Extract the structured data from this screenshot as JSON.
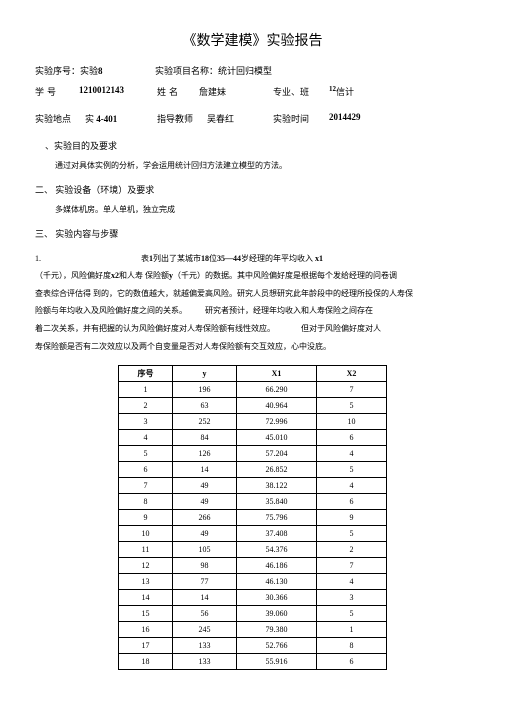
{
  "title": "《数学建模》实验报告",
  "row1": {
    "label_exp_no": "实验序号：实验",
    "exp_no_bold": "8",
    "label_proj_name": "实验项目名称：统计回归模型"
  },
  "row2": {
    "label_id": "学号",
    "id": "1210012143",
    "label_name": "姓名",
    "name": "詹建妹",
    "label_class": "专业、班",
    "class_sup": "12",
    "class_txt": "信计"
  },
  "row3": {
    "label_place": "实验地点",
    "place_prefix": "实",
    "place_bold": "4-401",
    "label_teacher": "指导教师",
    "teacher": "吴春红",
    "label_time": "实验时间",
    "time": "2014429"
  },
  "sec1": {
    "title": "、实验目的及要求",
    "text": "通过对具体实例的分析，学会运用统计回归方法建立模型的方法。"
  },
  "sec2": {
    "title": "二、 实验设备（环境）及要求",
    "text": "多媒体机房。单人单机，独立完成"
  },
  "sec3": {
    "title": "三、 实验内容与步骤"
  },
  "para": {
    "l1a": "1.",
    "l1b": "表",
    "l1c": "1",
    "l1d": "列出了某城市",
    "l1e": "18",
    "l1f": "位",
    "l1g": "35—44",
    "l1h": "岁经理的年平均收入",
    "l1i": "x1",
    "l2a": "（千元），风险偏好度",
    "l2b": "x2",
    "l2c": "和人寿 保险额",
    "l2d": "y",
    "l2e": "（千元）的数据。其中风险偏好度是根据每个发给经理的问卷调",
    "l3": "查表综合评估得 到的，它的数值越大，就越偏爱高风险。研究人员想研究此年龄段中的经理所投保的人寿保",
    "l4a": "险额与年均收入及风险偏好度之间的关系。",
    "l4b": "研究者预计，经理年均收入和人寿保险之间存在",
    "l5a": "着二次关系，并有把握的认为风险偏好度对人寿保险额有线性效应。",
    "l5b": "但对于风险偏好度对人",
    "l6": "寿保险额是否有二次效应以及两个自变量是否对人寿保险额有交互效应，心中没底。"
  },
  "table": {
    "headers": [
      "序号",
      "y",
      "X1",
      "X2"
    ],
    "rows": [
      [
        "1",
        "196",
        "66.290",
        "7"
      ],
      [
        "2",
        "63",
        "40.964",
        "5"
      ],
      [
        "3",
        "252",
        "72.996",
        "10"
      ],
      [
        "4",
        "84",
        "45.010",
        "6"
      ],
      [
        "5",
        "126",
        "57.204",
        "4"
      ],
      [
        "6",
        "14",
        "26.852",
        "5"
      ],
      [
        "7",
        "49",
        "38.122",
        "4"
      ],
      [
        "8",
        "49",
        "35.840",
        "6"
      ],
      [
        "9",
        "266",
        "75.796",
        "9"
      ],
      [
        "10",
        "49",
        "37.408",
        "5"
      ],
      [
        "11",
        "105",
        "54.376",
        "2"
      ],
      [
        "12",
        "98",
        "46.186",
        "7"
      ],
      [
        "13",
        "77",
        "46.130",
        "4"
      ],
      [
        "14",
        "14",
        "30.366",
        "3"
      ],
      [
        "15",
        "56",
        "39.060",
        "5"
      ],
      [
        "16",
        "245",
        "79.380",
        "1"
      ],
      [
        "17",
        "133",
        "52.766",
        "8"
      ],
      [
        "18",
        "133",
        "55.916",
        "6"
      ]
    ]
  }
}
